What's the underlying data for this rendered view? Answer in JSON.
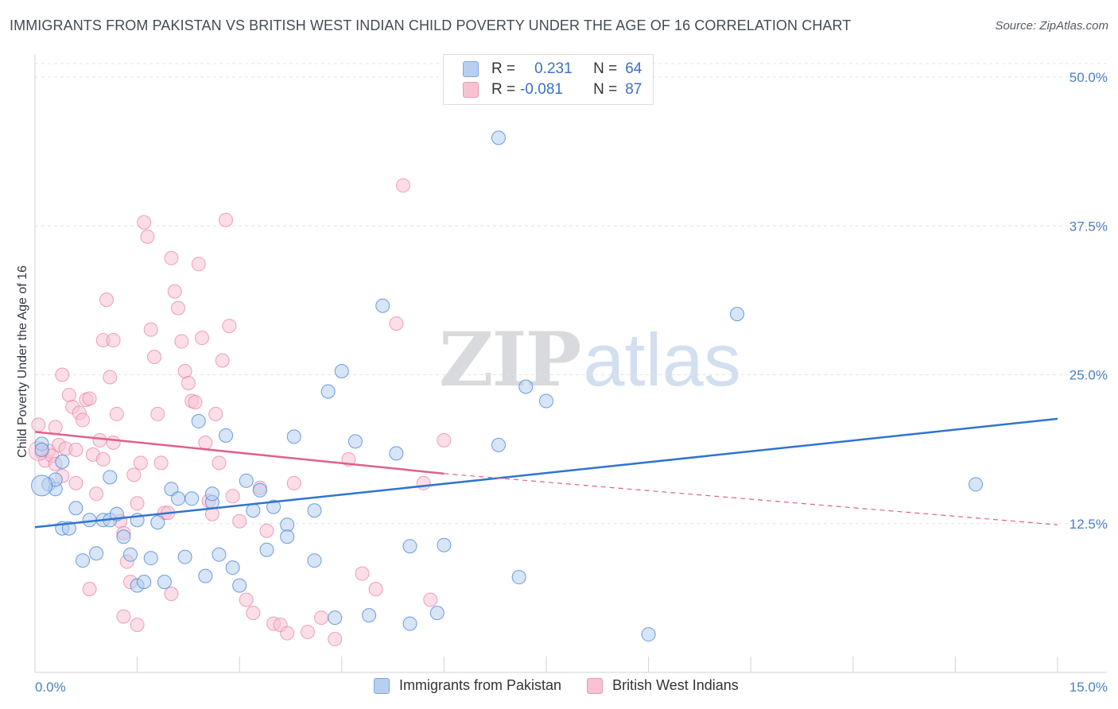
{
  "header": {
    "title": "IMMIGRANTS FROM PAKISTAN VS BRITISH WEST INDIAN CHILD POVERTY UNDER THE AGE OF 16 CORRELATION CHART",
    "source": "Source: ZipAtlas.com"
  },
  "watermark": {
    "zip": "ZIP",
    "atlas": "atlas"
  },
  "legend_top": {
    "rows": [
      {
        "r_label": "R =",
        "r_value": "0.231",
        "n_label": "N =",
        "n_value": "64",
        "color": "#a9c6ee"
      },
      {
        "r_label": "R =",
        "r_value": "-0.081",
        "n_label": "N =",
        "n_value": "87",
        "color": "#f5b8cb"
      }
    ]
  },
  "legend_bottom": {
    "items": [
      {
        "label": "Immigrants from Pakistan",
        "color": "#a9c6ee"
      },
      {
        "label": "British West Indians",
        "color": "#f5b8cb"
      }
    ]
  },
  "chart_data": {
    "type": "scatter",
    "title": "IMMIGRANTS FROM PAKISTAN VS BRITISH WEST INDIAN CHILD POVERTY UNDER THE AGE OF 16 CORRELATION CHART",
    "xlabel": "",
    "ylabel": "Child Poverty Under the Age of 16",
    "xlim": [
      0,
      15
    ],
    "ylim": [
      0,
      50
    ],
    "x_tick_labels": [
      "0.0%",
      "15.0%"
    ],
    "y_ticks": [
      12.5,
      25.0,
      37.5,
      50.0
    ],
    "y_tick_labels": [
      "12.5%",
      "25.0%",
      "37.5%",
      "50.0%"
    ],
    "grid": "horizontal dashed",
    "colors": {
      "blue": "#4a86d8",
      "blue_fill": "#b7d0f0",
      "pink": "#e87aa0",
      "pink_fill": "#f7c3d3",
      "blue_line": "#2f74d0",
      "pink_line": "#e0608c"
    },
    "series": [
      {
        "name": "Immigrants from Pakistan",
        "trend": {
          "x": [
            0,
            15
          ],
          "y": [
            12.2,
            21.3
          ]
        },
        "points": [
          [
            0.1,
            19.2
          ],
          [
            0.1,
            18.7
          ],
          [
            0.2,
            15.8
          ],
          [
            0.3,
            15.4
          ],
          [
            0.3,
            16.2
          ],
          [
            0.4,
            17.7
          ],
          [
            0.4,
            12.1
          ],
          [
            0.5,
            12.1
          ],
          [
            0.6,
            13.8
          ],
          [
            0.7,
            9.4
          ],
          [
            0.8,
            12.8
          ],
          [
            0.9,
            10.0
          ],
          [
            1.0,
            12.8
          ],
          [
            1.1,
            12.8
          ],
          [
            1.1,
            16.4
          ],
          [
            1.2,
            13.3
          ],
          [
            1.3,
            11.4
          ],
          [
            1.4,
            9.9
          ],
          [
            1.5,
            12.8
          ],
          [
            1.5,
            7.3
          ],
          [
            1.6,
            7.6
          ],
          [
            1.7,
            9.6
          ],
          [
            1.8,
            12.6
          ],
          [
            1.9,
            7.6
          ],
          [
            2.0,
            15.4
          ],
          [
            2.1,
            14.6
          ],
          [
            2.2,
            9.7
          ],
          [
            2.3,
            14.6
          ],
          [
            2.4,
            21.1
          ],
          [
            2.5,
            8.1
          ],
          [
            2.6,
            14.3
          ],
          [
            2.6,
            15.0
          ],
          [
            2.7,
            9.9
          ],
          [
            2.8,
            19.9
          ],
          [
            2.9,
            8.8
          ],
          [
            3.0,
            7.3
          ],
          [
            3.1,
            16.1
          ],
          [
            3.2,
            13.6
          ],
          [
            3.3,
            15.3
          ],
          [
            3.4,
            10.3
          ],
          [
            3.5,
            13.9
          ],
          [
            3.7,
            12.4
          ],
          [
            3.7,
            11.4
          ],
          [
            3.8,
            19.8
          ],
          [
            4.1,
            13.6
          ],
          [
            4.1,
            9.4
          ],
          [
            4.3,
            23.6
          ],
          [
            4.4,
            4.6
          ],
          [
            4.5,
            25.3
          ],
          [
            4.7,
            19.4
          ],
          [
            4.9,
            4.8
          ],
          [
            5.1,
            30.8
          ],
          [
            5.3,
            18.4
          ],
          [
            5.5,
            10.6
          ],
          [
            5.5,
            4.1
          ],
          [
            5.9,
            5.0
          ],
          [
            6.0,
            10.7
          ],
          [
            6.8,
            19.1
          ],
          [
            6.8,
            44.9
          ],
          [
            7.1,
            8.0
          ],
          [
            7.2,
            24.0
          ],
          [
            7.5,
            22.8
          ],
          [
            9.0,
            3.2
          ],
          [
            10.3,
            30.1
          ],
          [
            13.8,
            15.8
          ]
        ]
      },
      {
        "name": "British West Indians",
        "trend": {
          "x": [
            0,
            6.0
          ],
          "y": [
            20.2,
            16.7
          ],
          "dashed_to": {
            "x": 15,
            "y": 12.4
          }
        },
        "points": [
          [
            0.05,
            20.8
          ],
          [
            0.1,
            18.5
          ],
          [
            0.15,
            17.8
          ],
          [
            0.2,
            18.6
          ],
          [
            0.25,
            18.2
          ],
          [
            0.3,
            20.6
          ],
          [
            0.3,
            17.5
          ],
          [
            0.35,
            19.1
          ],
          [
            0.4,
            16.5
          ],
          [
            0.45,
            18.8
          ],
          [
            0.5,
            23.3
          ],
          [
            0.55,
            22.3
          ],
          [
            0.6,
            18.7
          ],
          [
            0.6,
            15.9
          ],
          [
            0.65,
            21.8
          ],
          [
            0.7,
            21.2
          ],
          [
            0.75,
            22.9
          ],
          [
            0.8,
            23.0
          ],
          [
            0.85,
            18.3
          ],
          [
            0.9,
            15.0
          ],
          [
            0.95,
            19.5
          ],
          [
            1.0,
            17.9
          ],
          [
            1.0,
            27.9
          ],
          [
            1.05,
            31.3
          ],
          [
            1.1,
            24.8
          ],
          [
            1.15,
            27.9
          ],
          [
            1.15,
            19.3
          ],
          [
            1.2,
            21.7
          ],
          [
            1.25,
            12.7
          ],
          [
            1.3,
            11.7
          ],
          [
            1.35,
            9.3
          ],
          [
            1.4,
            7.6
          ],
          [
            1.45,
            16.6
          ],
          [
            1.5,
            14.2
          ],
          [
            1.55,
            17.6
          ],
          [
            1.6,
            37.8
          ],
          [
            1.65,
            36.6
          ],
          [
            1.7,
            28.8
          ],
          [
            1.75,
            26.5
          ],
          [
            1.8,
            21.7
          ],
          [
            1.85,
            17.6
          ],
          [
            1.9,
            13.4
          ],
          [
            1.95,
            13.4
          ],
          [
            2.0,
            34.8
          ],
          [
            2.05,
            32.0
          ],
          [
            2.1,
            30.6
          ],
          [
            2.15,
            27.8
          ],
          [
            2.2,
            25.3
          ],
          [
            2.25,
            24.3
          ],
          [
            2.3,
            22.8
          ],
          [
            2.35,
            22.7
          ],
          [
            2.4,
            34.3
          ],
          [
            2.45,
            28.1
          ],
          [
            2.5,
            19.3
          ],
          [
            2.55,
            14.4
          ],
          [
            2.6,
            13.3
          ],
          [
            2.65,
            21.7
          ],
          [
            2.7,
            17.6
          ],
          [
            2.75,
            26.2
          ],
          [
            2.8,
            38.0
          ],
          [
            2.85,
            29.1
          ],
          [
            2.9,
            14.8
          ],
          [
            3.0,
            12.7
          ],
          [
            3.1,
            6.1
          ],
          [
            3.2,
            5.0
          ],
          [
            3.3,
            15.5
          ],
          [
            3.4,
            11.9
          ],
          [
            3.5,
            4.1
          ],
          [
            3.6,
            4.0
          ],
          [
            3.7,
            3.3
          ],
          [
            3.8,
            15.9
          ],
          [
            4.0,
            3.4
          ],
          [
            4.2,
            4.6
          ],
          [
            4.4,
            2.8
          ],
          [
            4.6,
            17.9
          ],
          [
            4.8,
            8.3
          ],
          [
            5.0,
            7.0
          ],
          [
            5.3,
            29.3
          ],
          [
            5.4,
            40.9
          ],
          [
            5.7,
            15.9
          ],
          [
            5.8,
            6.1
          ],
          [
            6.0,
            19.5
          ],
          [
            0.4,
            25.0
          ],
          [
            0.8,
            7.0
          ],
          [
            1.3,
            4.7
          ],
          [
            1.5,
            4.0
          ],
          [
            2.0,
            6.6
          ]
        ]
      }
    ]
  }
}
